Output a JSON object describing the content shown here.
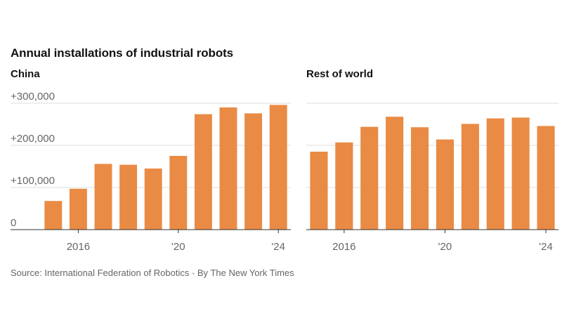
{
  "title": "Annual installations of industrial robots",
  "colors": {
    "bar": "#E98B45",
    "grid": "#dddddd",
    "axis": "#333333",
    "tick_text": "#666666",
    "text": "#121212"
  },
  "footer": {
    "source": "Source: International Federation of Robotics",
    "separator": "•",
    "credit": "By The New York Times"
  },
  "chart_data": [
    {
      "type": "bar",
      "title": "China",
      "x": [
        2015,
        2016,
        2017,
        2018,
        2019,
        2020,
        2021,
        2022,
        2023,
        2024
      ],
      "values": [
        68000,
        97000,
        156000,
        154000,
        145000,
        175000,
        274000,
        290000,
        276000,
        296000
      ],
      "ylim": [
        0,
        300000
      ],
      "yticks": [
        0,
        100000,
        200000,
        300000
      ],
      "ytick_labels": [
        "0",
        "+100,000",
        "+200,000",
        "+300,000"
      ],
      "xticks": [
        2016,
        2020,
        2024
      ],
      "xtick_labels": [
        "2016",
        "'20",
        "'24"
      ],
      "grid": true
    },
    {
      "type": "bar",
      "title": "Rest of world",
      "x": [
        2015,
        2016,
        2017,
        2018,
        2019,
        2020,
        2021,
        2022,
        2023,
        2024
      ],
      "values": [
        185000,
        207000,
        244000,
        268000,
        243000,
        214000,
        251000,
        264000,
        266000,
        246000
      ],
      "ylim": [
        0,
        300000
      ],
      "yticks": [
        0,
        100000,
        200000,
        300000
      ],
      "xticks": [
        2016,
        2020,
        2024
      ],
      "xtick_labels": [
        "2016",
        "'20",
        "'24"
      ],
      "grid": true
    }
  ]
}
